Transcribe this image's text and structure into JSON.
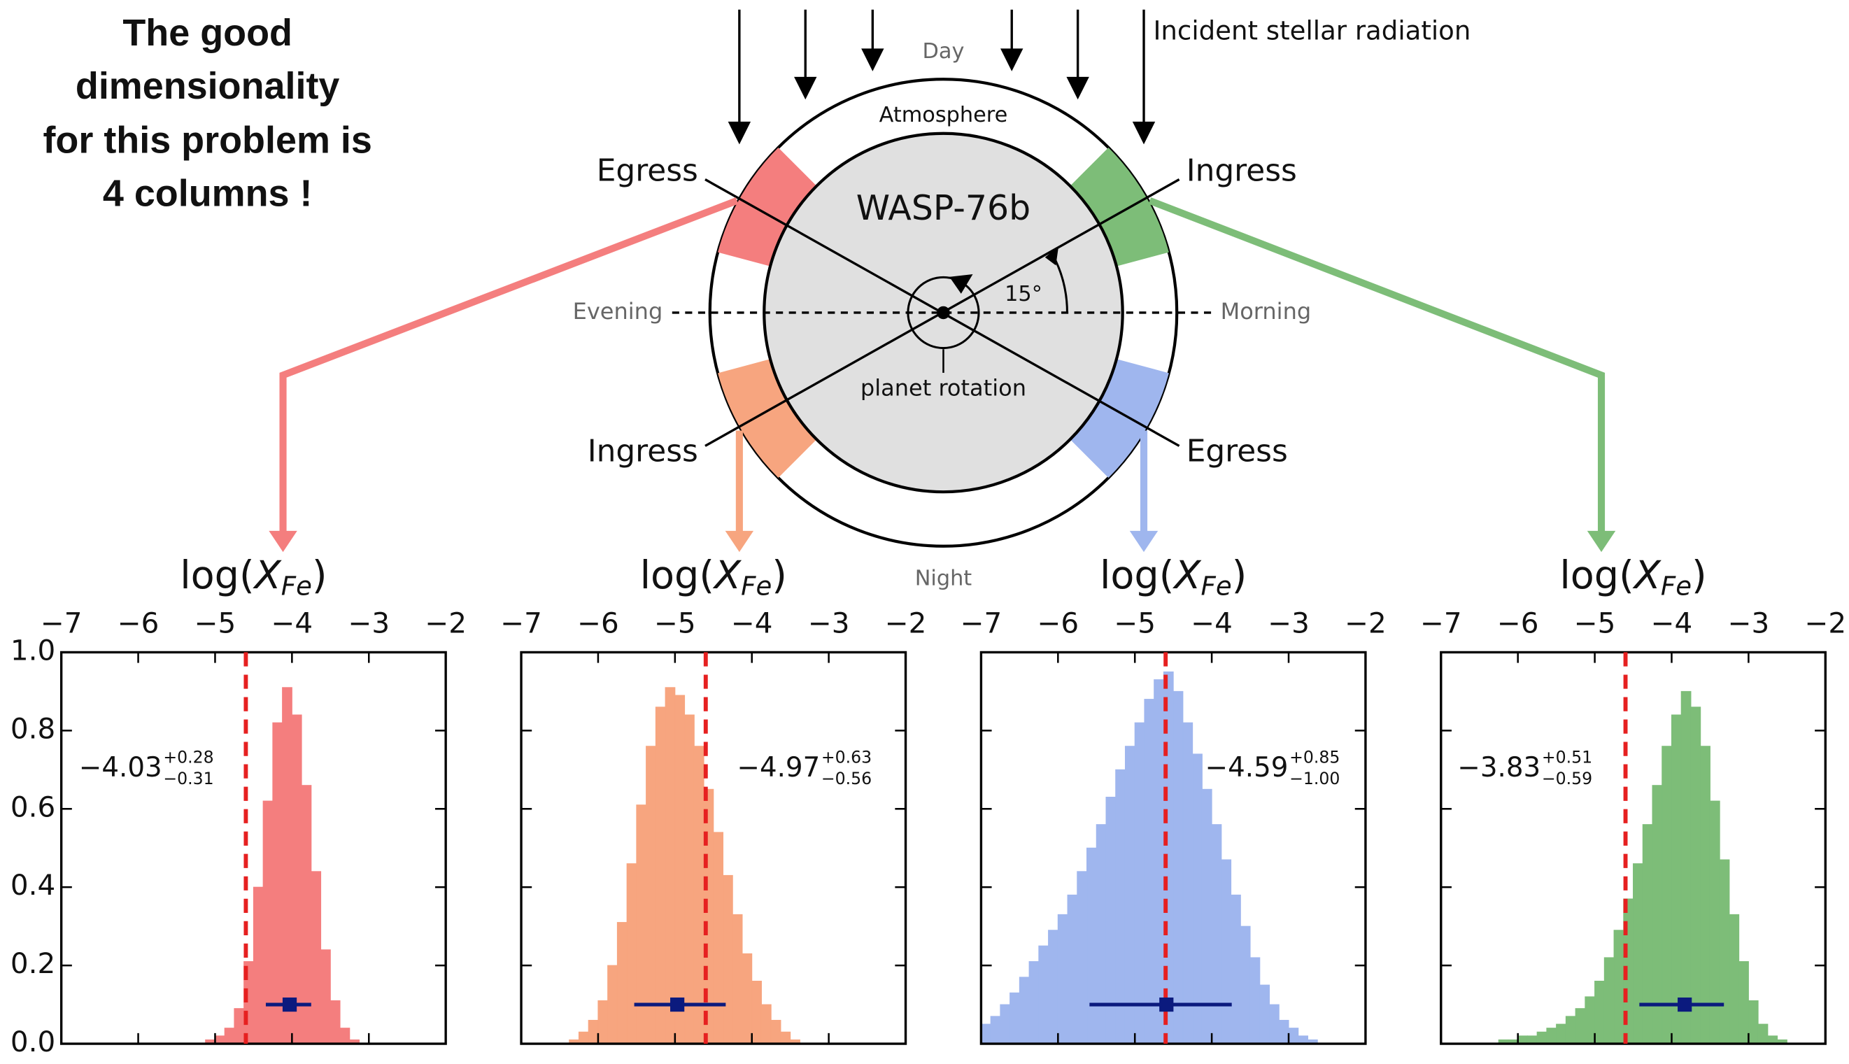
{
  "annotation": [
    "The good",
    "dimensionality",
    "for this problem is",
    "4 columns !"
  ],
  "diagram": {
    "radiation": "Incident stellar radiation",
    "day": "Day",
    "atmosphere": "Atmosphere",
    "planet": "WASP-76b",
    "egress_left": "Egress",
    "ingress_right": "Ingress",
    "ingress_left": "Ingress",
    "egress_right": "Egress",
    "evening": "Evening",
    "morning": "Morning",
    "angle": "15°",
    "rotation": "planet rotation",
    "night": "Night"
  },
  "chart_data": [
    {
      "type": "histogram",
      "xlabel": {
        "prefix": "log(",
        "symbol": "X",
        "subscript": "Fe",
        "suffix": ")"
      },
      "bins": [
        -7,
        -6.875,
        -6.75,
        -6.625,
        -6.5,
        -6.375,
        -6.25,
        -6.125,
        -6,
        -5.875,
        -5.75,
        -5.625,
        -5.5,
        -5.375,
        -5.25,
        -5.125,
        -5,
        -4.875,
        -4.75,
        -4.625,
        -4.5,
        -4.375,
        -4.25,
        -4.125,
        -4,
        -3.875,
        -3.75,
        -3.625,
        -3.5,
        -3.375,
        -3.25,
        -3.125,
        -3,
        -2.875,
        -2.75,
        -2.625,
        -2.5,
        -2.375,
        -2.25,
        -2.125,
        -2
      ],
      "values": [
        0,
        0,
        0,
        0,
        0,
        0,
        0,
        0,
        0,
        0,
        0,
        0,
        0,
        0,
        0,
        0.01,
        0.02,
        0.04,
        0.09,
        0.21,
        0.4,
        0.62,
        0.82,
        0.91,
        0.84,
        0.66,
        0.44,
        0.24,
        0.11,
        0.04,
        0.01,
        0,
        0,
        0,
        0,
        0,
        0,
        0,
        0,
        0
      ],
      "color": "#f47e7e",
      "xlim": [
        -7,
        -2
      ],
      "xticks": [
        {
          "value": -7,
          "label": "−7"
        },
        {
          "value": -6,
          "label": "−6"
        },
        {
          "value": -5,
          "label": "−5"
        },
        {
          "value": -4,
          "label": "−4"
        },
        {
          "value": -3,
          "label": "−3"
        },
        {
          "value": -2,
          "label": "−2"
        }
      ],
      "ylim": [
        0,
        1
      ],
      "yticks": [
        {
          "value": 0,
          "label": "0.0"
        },
        0.2,
        0.4,
        0.6,
        0.8,
        {
          "value": 1,
          "label": "1.0"
        }
      ],
      "reference": -4.6,
      "reference_color": "#e62020",
      "estimate": {
        "value": -4.03,
        "label": "−4.03"
      },
      "err_plus": {
        "value": 0.28,
        "label": "+0.28"
      },
      "err_minus": {
        "value": 0.31,
        "label": "−0.31"
      },
      "estimate_color": "#0b1a7e"
    },
    {
      "type": "histogram",
      "xlabel": {
        "prefix": "log(",
        "symbol": "X",
        "subscript": "Fe",
        "suffix": ")"
      },
      "bins": [
        -7,
        -6.875,
        -6.75,
        -6.625,
        -6.5,
        -6.375,
        -6.25,
        -6.125,
        -6,
        -5.875,
        -5.75,
        -5.625,
        -5.5,
        -5.375,
        -5.25,
        -5.125,
        -5,
        -4.875,
        -4.75,
        -4.625,
        -4.5,
        -4.375,
        -4.25,
        -4.125,
        -4,
        -3.875,
        -3.75,
        -3.625,
        -3.5,
        -3.375,
        -3.25,
        -3.125,
        -3,
        -2.875,
        -2.75,
        -2.625,
        -2.5,
        -2.375,
        -2.25,
        -2.125,
        -2
      ],
      "values": [
        0,
        0,
        0,
        0,
        0,
        0.01,
        0.03,
        0.06,
        0.11,
        0.2,
        0.31,
        0.46,
        0.61,
        0.76,
        0.86,
        0.91,
        0.89,
        0.84,
        0.76,
        0.65,
        0.54,
        0.43,
        0.33,
        0.23,
        0.16,
        0.1,
        0.06,
        0.03,
        0.01,
        0,
        0,
        0,
        0,
        0,
        0,
        0,
        0,
        0,
        0,
        0
      ],
      "color": "#f7a57f",
      "xlim": [
        -7,
        -2
      ],
      "xticks": [
        {
          "value": -7,
          "label": "−7"
        },
        {
          "value": -6,
          "label": "−6"
        },
        {
          "value": -5,
          "label": "−5"
        },
        {
          "value": -4,
          "label": "−4"
        },
        {
          "value": -3,
          "label": "−3"
        },
        {
          "value": -2,
          "label": "−2"
        }
      ],
      "ylim": [
        0,
        1
      ],
      "reference": -4.6,
      "reference_color": "#e62020",
      "estimate": {
        "value": -4.97,
        "label": "−4.97"
      },
      "err_plus": {
        "value": 0.63,
        "label": "+0.63"
      },
      "err_minus": {
        "value": 0.56,
        "label": "−0.56"
      },
      "estimate_color": "#0b1a7e"
    },
    {
      "type": "histogram",
      "xlabel": {
        "prefix": "log(",
        "symbol": "X",
        "subscript": "Fe",
        "suffix": ")"
      },
      "bins": [
        -7,
        -6.875,
        -6.75,
        -6.625,
        -6.5,
        -6.375,
        -6.25,
        -6.125,
        -6,
        -5.875,
        -5.75,
        -5.625,
        -5.5,
        -5.375,
        -5.25,
        -5.125,
        -5,
        -4.875,
        -4.75,
        -4.625,
        -4.5,
        -4.375,
        -4.25,
        -4.125,
        -4,
        -3.875,
        -3.75,
        -3.625,
        -3.5,
        -3.375,
        -3.25,
        -3.125,
        -3,
        -2.875,
        -2.75,
        -2.625,
        -2.5,
        -2.375,
        -2.25,
        -2.125,
        -2
      ],
      "values": [
        0.05,
        0.07,
        0.1,
        0.13,
        0.17,
        0.21,
        0.25,
        0.29,
        0.33,
        0.38,
        0.44,
        0.5,
        0.56,
        0.63,
        0.7,
        0.76,
        0.82,
        0.88,
        0.93,
        0.95,
        0.9,
        0.82,
        0.74,
        0.65,
        0.56,
        0.47,
        0.38,
        0.3,
        0.22,
        0.15,
        0.1,
        0.06,
        0.04,
        0.02,
        0.01,
        0,
        0,
        0,
        0,
        0
      ],
      "color": "#9fb6ee",
      "xlim": [
        -7,
        -2
      ],
      "xticks": [
        {
          "value": -7,
          "label": "−7"
        },
        {
          "value": -6,
          "label": "−6"
        },
        {
          "value": -5,
          "label": "−5"
        },
        {
          "value": -4,
          "label": "−4"
        },
        {
          "value": -3,
          "label": "−3"
        },
        {
          "value": -2,
          "label": "−2"
        }
      ],
      "ylim": [
        0,
        1
      ],
      "reference": -4.6,
      "reference_color": "#e62020",
      "estimate": {
        "value": -4.59,
        "label": "−4.59"
      },
      "err_plus": {
        "value": 0.85,
        "label": "+0.85"
      },
      "err_minus": {
        "value": 1.0,
        "label": "−1.00"
      },
      "estimate_color": "#0b1a7e"
    },
    {
      "type": "histogram",
      "xlabel": {
        "prefix": "log(",
        "symbol": "X",
        "subscript": "Fe",
        "suffix": ")"
      },
      "bins": [
        -7,
        -6.875,
        -6.75,
        -6.625,
        -6.5,
        -6.375,
        -6.25,
        -6.125,
        -6,
        -5.875,
        -5.75,
        -5.625,
        -5.5,
        -5.375,
        -5.25,
        -5.125,
        -5,
        -4.875,
        -4.75,
        -4.625,
        -4.5,
        -4.375,
        -4.25,
        -4.125,
        -4,
        -3.875,
        -3.75,
        -3.625,
        -3.5,
        -3.375,
        -3.25,
        -3.125,
        -3,
        -2.875,
        -2.75,
        -2.625,
        -2.5,
        -2.375,
        -2.25,
        -2.125,
        -2
      ],
      "values": [
        0,
        0,
        0,
        0,
        0,
        0,
        0.01,
        0.01,
        0.02,
        0.02,
        0.03,
        0.04,
        0.05,
        0.07,
        0.09,
        0.12,
        0.16,
        0.22,
        0.29,
        0.37,
        0.46,
        0.56,
        0.66,
        0.76,
        0.84,
        0.9,
        0.86,
        0.76,
        0.62,
        0.47,
        0.33,
        0.21,
        0.11,
        0.05,
        0.02,
        0.01,
        0,
        0,
        0,
        0
      ],
      "color": "#7dbd78",
      "xlim": [
        -7,
        -2
      ],
      "xticks": [
        {
          "value": -7,
          "label": "−7"
        },
        {
          "value": -6,
          "label": "−6"
        },
        {
          "value": -5,
          "label": "−5"
        },
        {
          "value": -4,
          "label": "−4"
        },
        {
          "value": -3,
          "label": "−3"
        },
        {
          "value": -2,
          "label": "−2"
        }
      ],
      "ylim": [
        0,
        1
      ],
      "reference": -4.6,
      "reference_color": "#e62020",
      "estimate": {
        "value": -3.83,
        "label": "−3.83"
      },
      "err_plus": {
        "value": 0.51,
        "label": "+0.51"
      },
      "err_minus": {
        "value": 0.59,
        "label": "−0.59"
      },
      "estimate_color": "#0b1a7e"
    }
  ]
}
